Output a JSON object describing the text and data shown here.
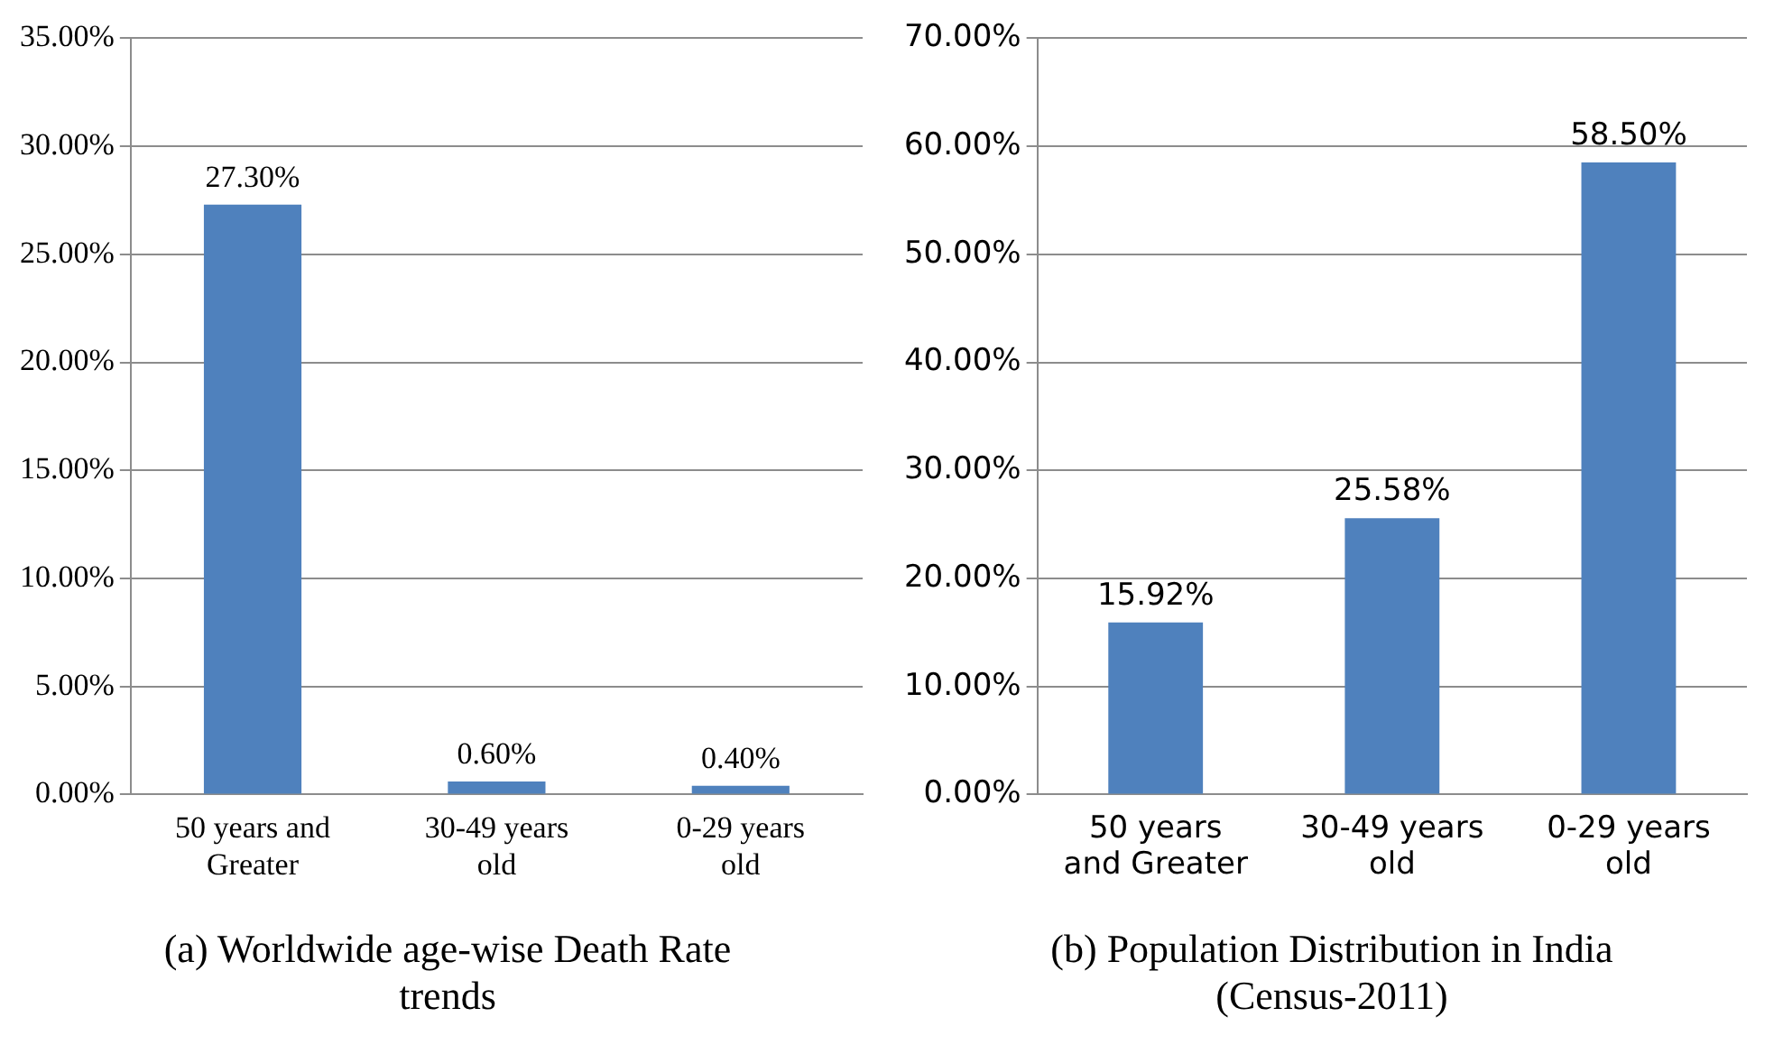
{
  "chart_data": [
    {
      "type": "bar",
      "title": "(a) Worldwide age-wise Death Rate trends",
      "categories": [
        "50 years and Greater",
        "30-49 years old",
        "0-29 years old"
      ],
      "values": [
        27.3,
        0.6,
        0.4
      ],
      "value_labels": [
        "27.30%",
        "0.60%",
        "0.40%"
      ],
      "color": "#4f81bd",
      "ylim": [
        0,
        35
      ],
      "yticks": [
        {
          "value": 0,
          "label": "0.00%"
        },
        {
          "value": 5,
          "label": "5.00%"
        },
        {
          "value": 10,
          "label": "10.00%"
        },
        {
          "value": 15,
          "label": "15.00%"
        },
        {
          "value": 20,
          "label": "20.00%"
        },
        {
          "value": 25,
          "label": "25.00%"
        },
        {
          "value": 30,
          "label": "30.00%"
        },
        {
          "value": 35,
          "label": "35.00%"
        }
      ],
      "grid": "y",
      "legend": false
    },
    {
      "type": "bar",
      "title": "(b) Population Distribution in India (Census-2011)",
      "categories": [
        "50 years and Greater",
        "30-49 years old",
        "0-29 years old"
      ],
      "values": [
        15.92,
        25.58,
        58.5
      ],
      "value_labels": [
        "15.92%",
        "25.58%",
        "58.50%"
      ],
      "color": "#4f81bd",
      "ylim": [
        0,
        70
      ],
      "yticks": [
        {
          "value": 0,
          "label": "0.00%"
        },
        {
          "value": 10,
          "label": "10.00%"
        },
        {
          "value": 20,
          "label": "20.00%"
        },
        {
          "value": 30,
          "label": "30.00%"
        },
        {
          "value": 40,
          "label": "40.00%"
        },
        {
          "value": 50,
          "label": "50.00%"
        },
        {
          "value": 60,
          "label": "60.00%"
        },
        {
          "value": 70,
          "label": "70.00%"
        }
      ],
      "grid": "y",
      "legend": false
    }
  ]
}
